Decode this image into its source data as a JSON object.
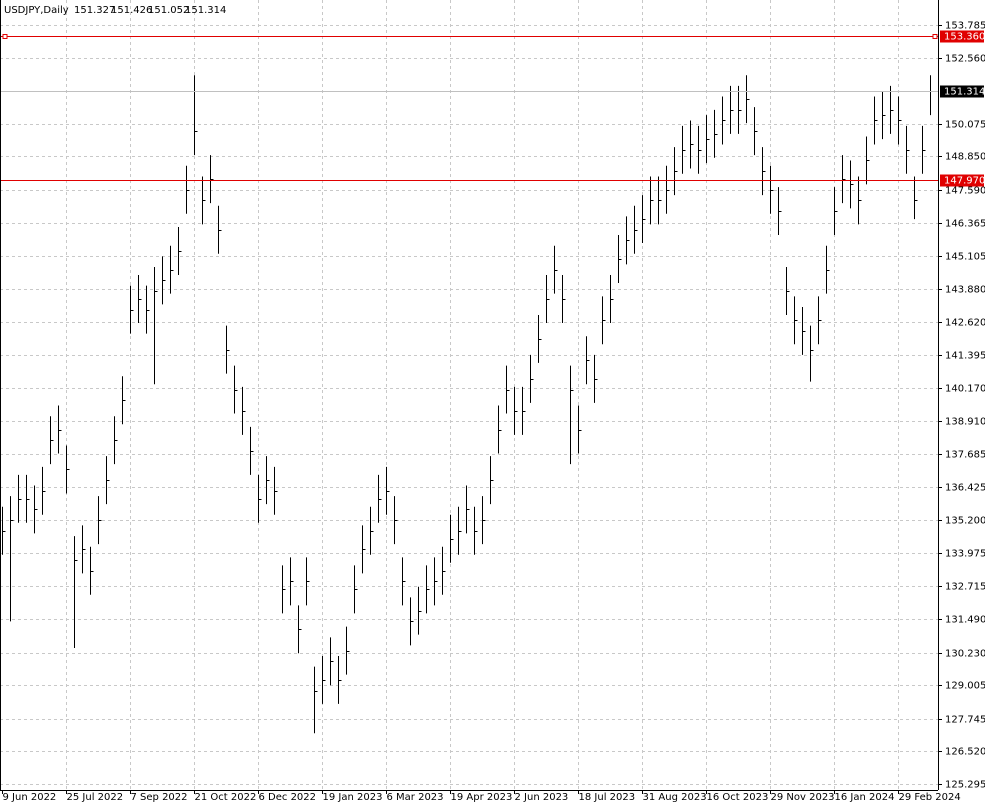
{
  "chart_data": {
    "type": "ohlc",
    "title": "USDJPY,Daily",
    "quote": [
      151.327,
      151.426,
      151.052,
      151.314
    ],
    "color": "#000000",
    "grid": true,
    "xlim": [
      0,
      117
    ],
    "ylim": [
      125.069,
      154.723
    ],
    "xticks": [
      {
        "value": 0,
        "label": "9 Jun 2022"
      },
      {
        "value": 8,
        "label": "25 Jul 2022"
      },
      {
        "value": 16,
        "label": "7 Sep 2022"
      },
      {
        "value": 24,
        "label": "21 Oct 2022"
      },
      {
        "value": 32,
        "label": "6 Dec 2022"
      },
      {
        "value": 40,
        "label": "19 Jan 2023"
      },
      {
        "value": 48,
        "label": "6 Mar 2023"
      },
      {
        "value": 56,
        "label": "19 Apr 2023"
      },
      {
        "value": 64,
        "label": "2 Jun 2023"
      },
      {
        "value": 72,
        "label": "18 Jul 2023"
      },
      {
        "value": 80,
        "label": "31 Aug 2023"
      },
      {
        "value": 88,
        "label": "16 Oct 2023"
      },
      {
        "value": 96,
        "label": "29 Nov 2023"
      },
      {
        "value": 104,
        "label": "16 Jan 2024"
      },
      {
        "value": 112,
        "label": "29 Feb 2024"
      }
    ],
    "yticks": [
      {
        "value": 153.785,
        "label": "153.785"
      },
      {
        "value": 152.56,
        "label": "152.560"
      },
      {
        "value": 150.075,
        "label": "150.075"
      },
      {
        "value": 148.85,
        "label": "148.850"
      },
      {
        "value": 147.59,
        "label": "147.590"
      },
      {
        "value": 146.365,
        "label": "146.365"
      },
      {
        "value": 145.105,
        "label": "145.105"
      },
      {
        "value": 143.88,
        "label": "143.880"
      },
      {
        "value": 142.62,
        "label": "142.620"
      },
      {
        "value": 141.395,
        "label": "141.395"
      },
      {
        "value": 140.17,
        "label": "140.170"
      },
      {
        "value": 138.91,
        "label": "138.910"
      },
      {
        "value": 137.685,
        "label": "137.685"
      },
      {
        "value": 136.425,
        "label": "136.425"
      },
      {
        "value": 135.2,
        "label": "135.200"
      },
      {
        "value": 133.975,
        "label": "133.975"
      },
      {
        "value": 132.715,
        "label": "132.715"
      },
      {
        "value": 131.49,
        "label": "131.490"
      },
      {
        "value": 130.23,
        "label": "130.230"
      },
      {
        "value": 129.005,
        "label": "129.005"
      },
      {
        "value": 127.745,
        "label": "127.745"
      },
      {
        "value": 126.52,
        "label": "126.520"
      },
      {
        "value": 125.295,
        "label": "125.295"
      }
    ],
    "levels": [
      {
        "value": 153.36,
        "label": "153.360",
        "color": "#e00000"
      },
      {
        "value": 147.97,
        "label": "147.970",
        "color": "#e00000"
      }
    ],
    "last_price": {
      "value": 151.314,
      "label": "151.314",
      "color": "#c0c0c0"
    },
    "high": [
      135.7,
      136.1,
      136.9,
      136.9,
      136.5,
      137.2,
      139.1,
      139.5,
      138.0,
      134.6,
      135.0,
      134.2,
      136.1,
      137.6,
      139.1,
      140.6,
      144.0,
      144.4,
      144.0,
      144.7,
      145.1,
      145.5,
      146.2,
      148.5,
      151.9,
      148.1,
      148.9,
      147.0,
      142.5,
      141.0,
      140.2,
      138.7,
      136.9,
      137.6,
      137.2,
      133.5,
      133.8,
      132.0,
      133.8,
      129.7,
      130.1,
      130.8,
      130.1,
      131.2,
      133.5,
      135.0,
      135.7,
      136.9,
      137.2,
      136.1,
      133.8,
      132.3,
      132.7,
      133.5,
      133.8,
      134.2,
      135.4,
      135.7,
      136.5,
      135.7,
      136.1,
      137.6,
      139.5,
      141.0,
      140.2,
      140.2,
      141.4,
      142.9,
      144.4,
      145.5,
      144.4,
      141.0,
      139.5,
      142.1,
      141.4,
      143.6,
      144.4,
      145.9,
      146.6,
      147.0,
      147.4,
      148.1,
      148.1,
      148.5,
      149.2,
      150.0,
      150.2,
      150.0,
      150.4,
      150.6,
      151.1,
      151.5,
      151.5,
      151.9,
      150.7,
      149.2,
      148.5,
      147.7,
      144.7,
      143.6,
      143.2,
      142.5,
      143.6,
      145.5,
      147.7,
      148.9,
      148.7,
      148.1,
      149.6,
      151.1,
      151.3,
      151.5,
      151.1,
      150.0,
      148.1,
      150.0,
      151.9
    ],
    "low": [
      133.9,
      131.4,
      135.1,
      135.1,
      134.7,
      135.4,
      137.3,
      137.7,
      136.2,
      130.4,
      133.2,
      132.4,
      134.3,
      135.8,
      137.3,
      138.8,
      142.2,
      142.6,
      142.2,
      140.3,
      143.3,
      143.7,
      144.4,
      146.7,
      148.9,
      146.3,
      147.1,
      145.2,
      140.7,
      139.2,
      138.4,
      136.9,
      135.1,
      135.8,
      135.4,
      131.7,
      132.0,
      130.2,
      132.0,
      127.2,
      128.3,
      129.0,
      128.3,
      129.4,
      131.7,
      133.2,
      133.9,
      135.1,
      135.4,
      134.3,
      132.0,
      130.5,
      130.9,
      131.7,
      132.0,
      132.4,
      133.6,
      133.9,
      134.7,
      133.9,
      134.3,
      135.8,
      137.7,
      139.2,
      138.4,
      138.4,
      139.6,
      141.1,
      142.6,
      143.7,
      142.6,
      137.3,
      137.7,
      140.3,
      139.6,
      141.8,
      142.6,
      144.1,
      144.8,
      145.2,
      145.6,
      146.3,
      146.3,
      146.7,
      147.4,
      148.2,
      148.4,
      148.2,
      148.6,
      148.8,
      149.3,
      149.7,
      149.7,
      150.1,
      148.9,
      147.4,
      146.7,
      145.9,
      142.9,
      141.8,
      141.4,
      140.4,
      141.8,
      143.7,
      145.9,
      147.1,
      146.9,
      146.3,
      147.8,
      149.3,
      149.5,
      149.7,
      149.3,
      148.2,
      146.5,
      148.2,
      150.4
    ],
    "close": [
      134.8,
      135.2,
      136.0,
      136.0,
      135.6,
      136.3,
      138.2,
      138.6,
      137.1,
      133.7,
      134.1,
      133.3,
      135.2,
      136.7,
      138.2,
      139.7,
      143.1,
      143.5,
      143.1,
      143.8,
      144.2,
      144.6,
      145.3,
      147.6,
      149.8,
      147.2,
      148.0,
      146.1,
      141.6,
      140.1,
      139.3,
      137.8,
      136.0,
      136.7,
      136.3,
      132.6,
      132.9,
      131.1,
      132.9,
      128.8,
      129.2,
      129.9,
      129.2,
      130.3,
      132.6,
      134.1,
      134.8,
      136.0,
      136.3,
      135.2,
      132.9,
      131.4,
      131.8,
      132.6,
      132.9,
      133.3,
      134.5,
      134.8,
      135.6,
      134.8,
      135.2,
      136.7,
      138.6,
      140.1,
      139.3,
      139.3,
      140.5,
      142.0,
      143.5,
      144.6,
      143.5,
      140.1,
      138.6,
      141.2,
      140.5,
      142.7,
      143.5,
      145.0,
      145.7,
      146.1,
      146.5,
      147.2,
      147.2,
      147.6,
      148.3,
      149.1,
      149.3,
      149.1,
      149.5,
      149.7,
      150.2,
      150.6,
      150.6,
      151.0,
      149.8,
      148.3,
      147.6,
      146.8,
      143.8,
      142.7,
      142.3,
      141.6,
      142.7,
      144.6,
      146.8,
      148.0,
      147.8,
      147.2,
      148.7,
      150.2,
      150.4,
      150.6,
      150.2,
      149.1,
      147.2,
      149.1,
      151.3
    ]
  }
}
